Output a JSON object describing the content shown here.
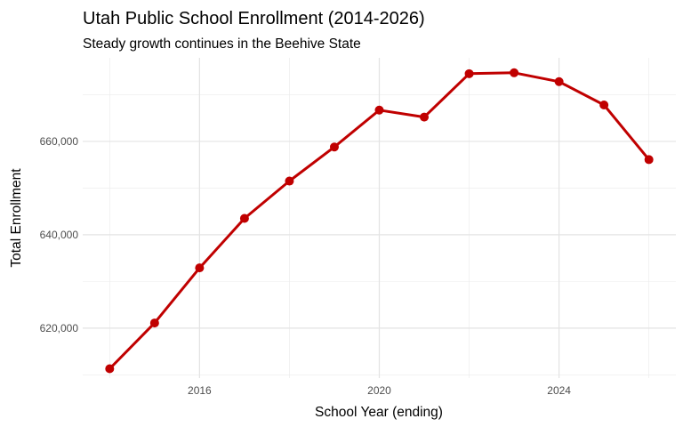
{
  "chart_data": {
    "type": "line",
    "title": "Utah Public School Enrollment (2014-2026)",
    "subtitle": "Steady growth continues in the Beehive State",
    "xlabel": "School Year (ending)",
    "ylabel": "Total Enrollment",
    "x": [
      2014,
      2015,
      2016,
      2017,
      2018,
      2019,
      2020,
      2021,
      2022,
      2023,
      2024,
      2025,
      2026
    ],
    "series": [
      {
        "values": [
          611300,
          621100,
          632900,
          643500,
          651500,
          658800,
          666700,
          665200,
          674500,
          674700,
          672800,
          667800,
          656100
        ]
      }
    ],
    "x_ticks": [
      2016,
      2020,
      2024
    ],
    "x_tick_labels": [
      "2016",
      "2020",
      "2024"
    ],
    "y_ticks": [
      620000,
      640000,
      660000
    ],
    "y_tick_labels": [
      "620,000",
      "640,000",
      "660,000"
    ],
    "xlim": [
      2013.4,
      2026.6
    ],
    "ylim": [
      609300,
      677900
    ],
    "grid": true,
    "line_color": "#c00000"
  }
}
